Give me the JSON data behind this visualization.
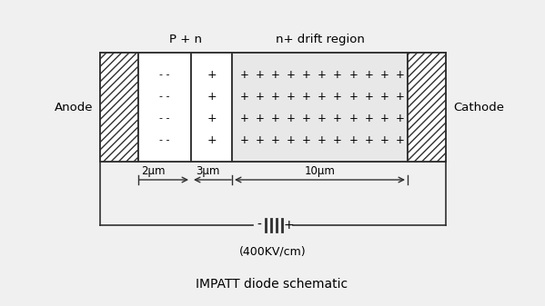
{
  "fig_width": 5.99,
  "fig_height": 3.37,
  "dpi": 100,
  "bg_color": "#f0f0f0",
  "title": "IMPATT diode schematic",
  "title_fontsize": 10,
  "anode_label": "Anode",
  "cathode_label": "Cathode",
  "p_n_label": "P + n",
  "drift_label": "n+ drift region",
  "dim_2um": "2μm",
  "dim_3um": "3μm",
  "dim_10um": "10μm",
  "battery_label": "(400KV/cm)",
  "drift_fill": "#e8e8e8",
  "line_color": "#303030"
}
